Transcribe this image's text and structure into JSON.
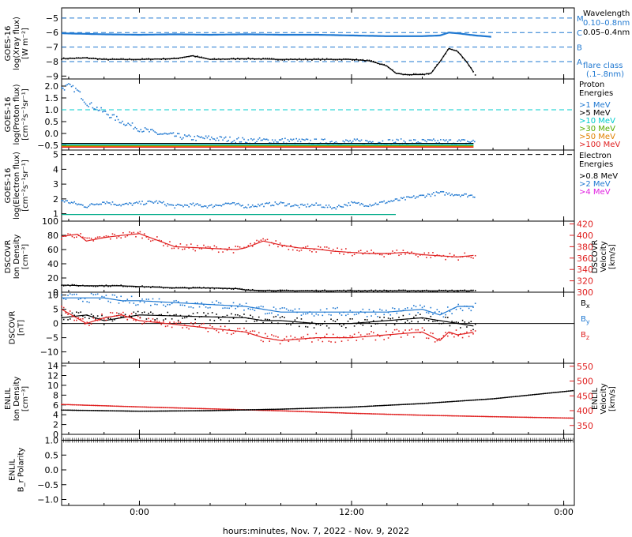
{
  "footer": "hours:minutes, Nov.  7, 2022 - Nov.  9, 2022",
  "time_ticks": [
    "0:00",
    "12:00",
    "0:00"
  ],
  "time_tick_hours": [
    0,
    12,
    24
  ],
  "time_range_hours": [
    -4.4,
    24.6
  ],
  "chart_data": [
    {
      "type": "line",
      "ylabel": [
        "GOES-16",
        "log(Xray flux)",
        "[W m⁻²]"
      ],
      "ylim": [
        -9.2,
        -4.3
      ],
      "yticks": [
        -5,
        -6,
        -7,
        -8,
        -9
      ],
      "ytick_labels": [
        "−5",
        "−6",
        "−7",
        "−8",
        "−9"
      ],
      "flare_levels": {
        "values": [
          -5,
          -6,
          -7,
          -8
        ],
        "labels": [
          "M",
          "C",
          "B",
          "A"
        ]
      },
      "legend_title": "Wavelength",
      "series": [
        {
          "name": "0.10–0.8nm",
          "color": "#1f78d1",
          "x": [
            -4.4,
            -2,
            0,
            2,
            4,
            6,
            8,
            10,
            12,
            14,
            16,
            17,
            17.5,
            18,
            19,
            20
          ],
          "y": [
            -6.05,
            -6.12,
            -6.15,
            -6.12,
            -6.15,
            -6.12,
            -6.15,
            -6.15,
            -6.2,
            -6.25,
            -6.25,
            -6.2,
            -6.0,
            -6.05,
            -6.2,
            -6.3
          ]
        },
        {
          "name": "0.05–0.4nm",
          "color": "#000000",
          "x": [
            -4.4,
            -3,
            -2,
            0,
            2,
            3,
            4,
            6,
            8,
            10,
            12,
            13,
            14,
            14.5,
            15,
            16,
            16.5,
            17,
            17.5,
            18,
            18.5,
            19
          ],
          "y": [
            -7.8,
            -7.75,
            -7.85,
            -7.85,
            -7.8,
            -7.6,
            -7.85,
            -7.8,
            -7.85,
            -7.85,
            -7.85,
            -7.95,
            -8.3,
            -8.8,
            -8.9,
            -8.9,
            -8.8,
            -8.0,
            -7.1,
            -7.3,
            -8.0,
            -8.9
          ]
        }
      ],
      "annotation": [
        "flare class",
        "(.1–.8nm)"
      ]
    },
    {
      "type": "scatter",
      "ylabel": [
        "GOES-16",
        "log(Proton flux)",
        "[cm⁻²s⁻¹sr⁻¹]"
      ],
      "ylim": [
        -0.7,
        2.3
      ],
      "yticks": [
        2.0,
        1.5,
        1.0,
        0.5,
        0.0,
        -0.5
      ],
      "ytick_labels": [
        "2.0",
        "1.5",
        "1.0",
        "0.5",
        "0.0",
        "−0.5"
      ],
      "legend_title": [
        "Proton",
        "Energies"
      ],
      "reference_line": 1.0,
      "series": [
        {
          "name": ">1 MeV",
          "color": "#1f78d1",
          "x": [
            -4.4,
            -4,
            -3.5,
            -3,
            -2.5,
            -2,
            -1.5,
            -1,
            0,
            1,
            2,
            3,
            4,
            6,
            8,
            10,
            12,
            14,
            16,
            18,
            19
          ],
          "y": [
            1.9,
            2.0,
            1.8,
            1.3,
            1.1,
            0.9,
            0.7,
            0.5,
            0.2,
            0.0,
            -0.1,
            -0.2,
            -0.2,
            -0.3,
            -0.3,
            -0.35,
            -0.35,
            -0.35,
            -0.35,
            -0.35,
            -0.35
          ]
        },
        {
          "name": ">5 MeV",
          "color": "#000000",
          "x": [
            -4.4,
            19
          ],
          "y": [
            -0.42,
            -0.42
          ]
        },
        {
          "name": ">10 MeV",
          "color": "#00cccc",
          "x": [
            -4.4,
            19
          ],
          "y": [
            -0.47,
            -0.47
          ]
        },
        {
          "name": ">30 MeV",
          "color": "#55aa00",
          "x": [
            -4.4,
            19
          ],
          "y": [
            -0.52,
            -0.52
          ]
        },
        {
          "name": ">50 MeV",
          "color": "#e08000",
          "x": [
            -4.4,
            19
          ],
          "y": [
            -0.55,
            -0.55
          ]
        },
        {
          "name": ">100 MeV",
          "color": "#e02020",
          "x": [
            -4.4,
            19
          ],
          "y": [
            -0.58,
            -0.58
          ]
        }
      ]
    },
    {
      "type": "scatter",
      "ylabel": [
        "GOES-16",
        "log(Electron flux)",
        "[cm⁻²s⁻¹sr⁻¹]"
      ],
      "ylim": [
        0.5,
        5.3
      ],
      "yticks": [
        5,
        4,
        3,
        2,
        1
      ],
      "ytick_labels": [
        "5",
        "4",
        "3",
        "2",
        "1"
      ],
      "legend_title": [
        "Electron",
        "Energies"
      ],
      "reference_line": 5.0,
      "series": [
        {
          "name": ">0.8 MeV",
          "color": "#000000",
          "x": [],
          "y": []
        },
        {
          "name": ">2 MeV",
          "color": "#1f78d1",
          "x": [
            -4.4,
            -3,
            -2,
            -1,
            0,
            1,
            2,
            3,
            4,
            5,
            6,
            7,
            8,
            9,
            10,
            11,
            12,
            13,
            14,
            15,
            16,
            17,
            18,
            19
          ],
          "y": [
            1.9,
            1.5,
            1.8,
            1.6,
            1.7,
            1.8,
            1.5,
            1.6,
            1.5,
            1.7,
            1.5,
            1.6,
            1.7,
            1.5,
            1.6,
            1.4,
            1.7,
            1.6,
            1.8,
            2.0,
            2.2,
            2.4,
            2.3,
            2.2
          ]
        },
        {
          "name": ">4 MeV",
          "color": "#e020e0",
          "x": [],
          "y": []
        },
        {
          "name": "",
          "color": "#00aa88",
          "x": [
            -4.4,
            14.5
          ],
          "y": [
            0.95,
            0.95
          ]
        }
      ]
    },
    {
      "type": "line",
      "ylabel": [
        "DSCOVR",
        "Ion Density",
        "[cm⁻³]"
      ],
      "ylim": [
        0,
        100
      ],
      "yticks": [
        100,
        80,
        60,
        40,
        20,
        0
      ],
      "ytick_labels": [
        "100",
        "80",
        "60",
        "40",
        "20",
        "0"
      ],
      "right_ylabel": [
        "DSCOVR",
        "Velocity",
        "[km/s]"
      ],
      "right_ylim": [
        300,
        425
      ],
      "right_yticks": [
        420,
        400,
        380,
        360,
        340,
        320,
        300
      ],
      "right_ytick_labels": [
        "420",
        "400",
        "380",
        "360",
        "340",
        "320",
        "300"
      ],
      "series": [
        {
          "name": "Density",
          "color": "#000000",
          "axis": "left",
          "x": [
            -4.4,
            -3,
            -2,
            -1,
            0,
            2,
            4,
            5.5,
            6,
            8,
            10,
            12,
            14,
            16,
            18,
            19
          ],
          "y": [
            10,
            9,
            9,
            9,
            8,
            6,
            6,
            5,
            3,
            2,
            2,
            2,
            2,
            2,
            2,
            2
          ]
        },
        {
          "name": "Velocity",
          "color": "#e02020",
          "axis": "right",
          "x": [
            -4.4,
            -3.5,
            -3,
            -2,
            -1,
            0,
            2,
            5.5,
            6,
            7,
            8,
            9,
            10,
            11,
            12,
            13,
            14,
            15,
            16,
            17,
            18,
            19
          ],
          "y": [
            398,
            402,
            390,
            396,
            400,
            403,
            380,
            375,
            378,
            390,
            383,
            378,
            376,
            372,
            370,
            368,
            368,
            370,
            366,
            364,
            362,
            365
          ]
        }
      ]
    },
    {
      "type": "line",
      "ylabel": [
        "DSCOVR",
        "[nT]"
      ],
      "ylim": [
        -14,
        11
      ],
      "yticks": [
        10,
        5,
        0,
        -5,
        -10
      ],
      "ytick_labels": [
        "10",
        "5",
        "0",
        "−5",
        "−10"
      ],
      "series": [
        {
          "name": "Bx",
          "color": "#000000",
          "x": [
            -4.4,
            -3,
            -2,
            -1,
            0,
            6,
            7,
            8,
            10,
            12,
            14,
            16,
            18,
            19
          ],
          "y": [
            2,
            3,
            1,
            2,
            3,
            2,
            1,
            1,
            0,
            0,
            1,
            2,
            0,
            -1
          ]
        },
        {
          "name": "By",
          "color": "#1f78d1",
          "x": [
            -4.4,
            -3,
            -2,
            -1,
            0,
            6,
            7,
            8,
            10,
            12,
            14,
            16,
            17,
            18,
            19
          ],
          "y": [
            9,
            9,
            9,
            8,
            8,
            6,
            5,
            4,
            4,
            4,
            4,
            5,
            3,
            6,
            6
          ]
        },
        {
          "name": "Bz",
          "color": "#e02020",
          "x": [
            -4.4,
            -3,
            -2,
            -1,
            0,
            6,
            7,
            8,
            10,
            12,
            14,
            16,
            17,
            17.5,
            18,
            19
          ],
          "y": [
            5,
            0,
            2,
            3,
            1,
            -3,
            -5,
            -6,
            -5,
            -5,
            -4,
            -3,
            -6,
            -3,
            -4,
            -3
          ]
        }
      ]
    },
    {
      "type": "line",
      "ylabel": [
        "ENLIL",
        "Ion Density",
        "[cm⁻³]"
      ],
      "ylim": [
        0,
        14.5
      ],
      "yticks": [
        14,
        12,
        10,
        8,
        6,
        4,
        2,
        0
      ],
      "ytick_labels": [
        "14",
        "12",
        "10",
        "8",
        "6",
        "4",
        "2",
        "0"
      ],
      "right_ylabel": [
        "ENLIL",
        "Velocity",
        "[km/s]"
      ],
      "right_ylim": [
        320,
        560
      ],
      "right_yticks": [
        550,
        500,
        450,
        400,
        350
      ],
      "right_ytick_labels": [
        "550",
        "500",
        "450",
        "400",
        "350"
      ],
      "series": [
        {
          "name": "Density",
          "color": "#e02020",
          "axis": "left",
          "x": [
            -4.4,
            0,
            4,
            8,
            12,
            16,
            20,
            24.6
          ],
          "y": [
            6.1,
            5.6,
            5.2,
            4.8,
            4.3,
            3.9,
            3.6,
            3.3
          ]
        },
        {
          "name": "Velocity",
          "color": "#000000",
          "axis": "right",
          "x": [
            -4.4,
            0,
            4,
            8,
            12,
            16,
            20,
            24.6
          ],
          "y": [
            402,
            398,
            400,
            405,
            412,
            424,
            440,
            468
          ]
        }
      ]
    },
    {
      "type": "line",
      "ylabel": [
        "ENLIL",
        "B_r Polarity"
      ],
      "ylim": [
        -1.2,
        1.2
      ],
      "yticks": [
        1.0,
        0.5,
        0.0,
        -0.5,
        -1.0
      ],
      "ytick_labels": [
        "1.0",
        "0.5",
        "0.0",
        "−0.5",
        "−1.0"
      ],
      "series": [
        {
          "name": "",
          "color": "#000000",
          "x": [
            -4.4,
            24.6
          ],
          "y": [
            1.0,
            1.0
          ]
        }
      ]
    }
  ],
  "legend_labels": {
    "xray": [
      "0.10–0.8nm",
      "0.05–0.4nm"
    ],
    "proton": [
      ">1 MeV",
      ">5 MeV",
      ">10 MeV",
      ">30 MeV",
      ">50 MeV",
      ">100 MeV"
    ],
    "electron": [
      ">0.8 MeV",
      ">2 MeV",
      ">4 MeV"
    ],
    "mag": [
      "B_x",
      "B_y",
      "B_z"
    ]
  }
}
